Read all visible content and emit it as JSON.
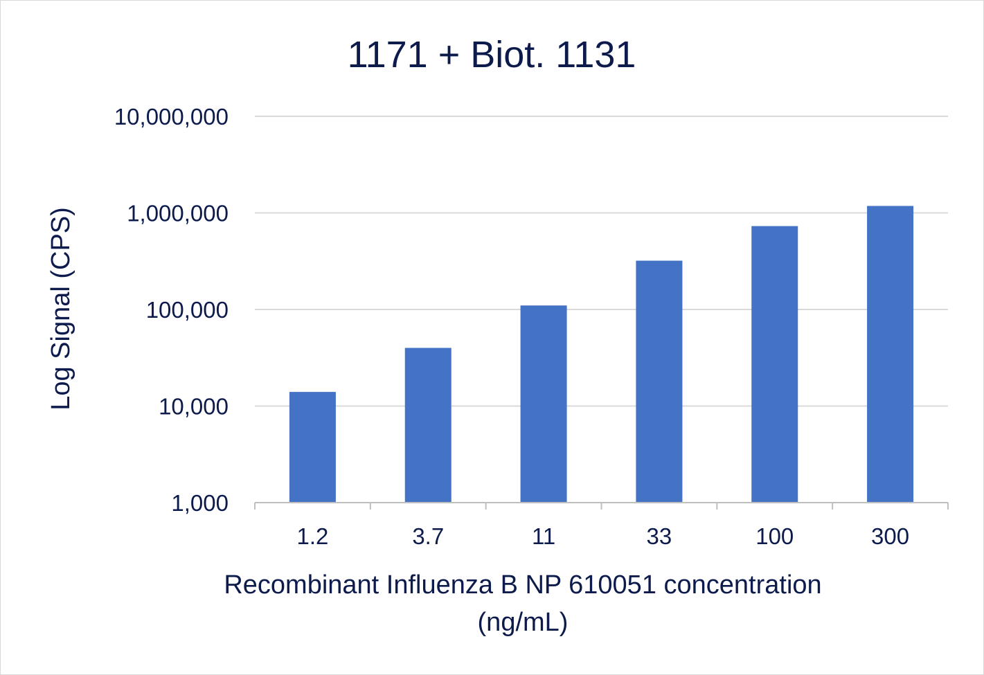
{
  "chart_data": {
    "type": "bar",
    "title": "1171 + Biot. 1131",
    "xlabel_lines": [
      "Recombinant Influenza B NP 610051 concentration",
      "(ng/mL)"
    ],
    "ylabel": "Log Signal (CPS)",
    "yscale": "log",
    "ylim": [
      1000,
      10000000
    ],
    "yticks": [
      1000,
      10000,
      100000,
      1000000,
      10000000
    ],
    "ytick_labels": [
      "1,000",
      "10,000",
      "100,000",
      "1,000,000",
      "10,000,000"
    ],
    "categories": [
      "1.2",
      "3.7",
      "11",
      "33",
      "100",
      "300"
    ],
    "values": [
      14000,
      40000,
      110000,
      320000,
      730000,
      1180000
    ],
    "grid": true,
    "legend": "none",
    "colors": {
      "bar": "#4472c4",
      "text": "#0d1b4c",
      "grid": "#d9d9d9",
      "axis": "#bfbfbf"
    }
  }
}
